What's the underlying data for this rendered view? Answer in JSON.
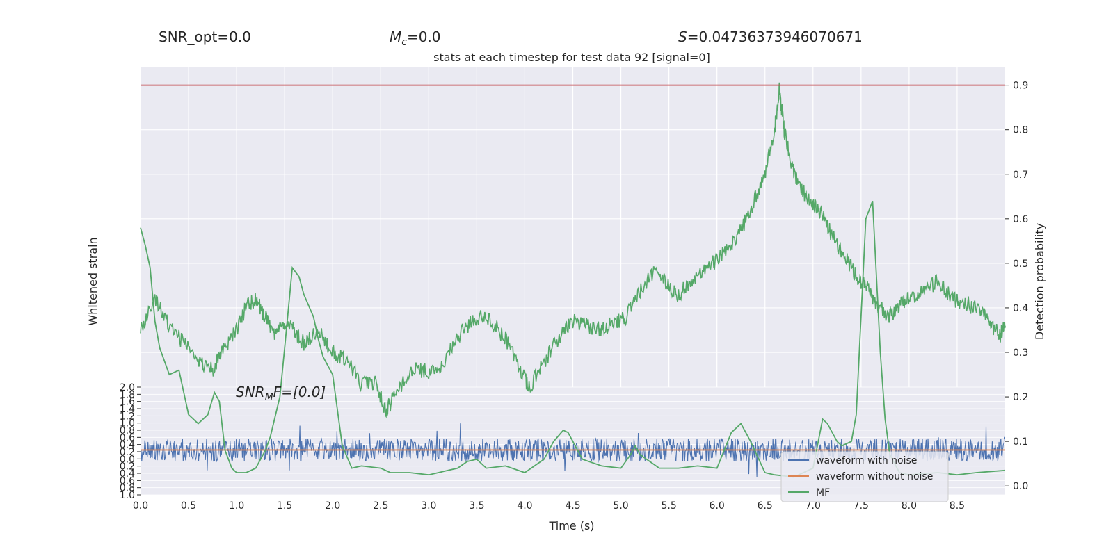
{
  "header": {
    "snr_opt": "SNR_opt=0.0",
    "mc_symbol": "M",
    "mc_sub": "c",
    "mc_value": "=0.0",
    "s_symbol": "S",
    "s_value": "=0.04736373946070671"
  },
  "annotation": {
    "snr_symbol": "SNR",
    "snr_sub": "M",
    "snr_rest": "F=[0.0]"
  },
  "colors": {
    "background": "#eaeaf2",
    "grid": "#ffffff",
    "noise": "#4c72b0",
    "clean": "#dd8452",
    "mf": "#55a868",
    "threshold": "#c44e52"
  },
  "chart_data": {
    "type": "line",
    "title": "stats at each timestep for test data 92 [signal=0]",
    "xlabel": "Time (s)",
    "ylabel_left": "Whitened strain",
    "ylabel_right": "Detection probability",
    "xlim": [
      0.0,
      9.0
    ],
    "x_ticks": [
      "0.0",
      "0.5",
      "1.0",
      "1.5",
      "2.0",
      "2.5",
      "3.0",
      "3.5",
      "4.0",
      "4.5",
      "5.0",
      "5.5",
      "6.0",
      "6.5",
      "7.0",
      "7.5",
      "8.0",
      "8.5"
    ],
    "y_right_lim": [
      -0.02,
      0.94
    ],
    "y_right_ticks": [
      "0.0",
      "0.1",
      "0.2",
      "0.3",
      "0.4",
      "0.5",
      "0.6",
      "0.7",
      "0.8",
      "0.9"
    ],
    "strain_lim": [
      -1.0,
      2.0
    ],
    "strain_tick_labels": [
      "2.0",
      "1.8",
      "1.6",
      "1.4",
      "1.2",
      "1.0",
      "0.8",
      "0.6",
      "0.4",
      "0.2",
      "0.0",
      "0.2",
      "0.4",
      "0.6",
      "0.8",
      "1.0"
    ],
    "threshold": 0.9,
    "legend": {
      "position": "lower-right",
      "entries": [
        "waveform with noise",
        "waveform without noise",
        "MF"
      ]
    },
    "series": [
      {
        "name": "waveform with noise",
        "axis": "strain",
        "style": "noise",
        "center": 0.25,
        "amplitude": 0.32,
        "peak": 0.75
      },
      {
        "name": "waveform without noise",
        "axis": "strain",
        "style": "flat",
        "value": 0.25
      },
      {
        "name": "MF",
        "axis": "probability",
        "x": [
          0.0,
          0.05,
          0.1,
          0.15,
          0.2,
          0.3,
          0.4,
          0.5,
          0.6,
          0.7,
          0.77,
          0.82,
          0.88,
          0.95,
          1.0,
          1.1,
          1.2,
          1.3,
          1.35,
          1.45,
          1.5,
          1.58,
          1.65,
          1.7,
          1.8,
          1.85,
          1.9,
          2.0,
          2.1,
          2.2,
          2.3,
          2.5,
          2.6,
          2.8,
          3.0,
          3.2,
          3.3,
          3.4,
          3.5,
          3.6,
          3.8,
          4.0,
          4.2,
          4.3,
          4.4,
          4.45,
          4.5,
          4.6,
          4.8,
          5.0,
          5.1,
          5.15,
          5.2,
          5.4,
          5.6,
          5.8,
          6.0,
          6.15,
          6.25,
          6.35,
          6.5,
          6.6,
          6.8,
          7.0,
          7.1,
          7.15,
          7.25,
          7.3,
          7.4,
          7.45,
          7.55,
          7.62,
          7.7,
          7.75,
          7.8,
          7.9,
          8.0,
          8.3,
          8.5,
          8.7,
          9.0
        ],
        "y": [
          0.58,
          0.54,
          0.49,
          0.37,
          0.31,
          0.25,
          0.26,
          0.16,
          0.14,
          0.16,
          0.21,
          0.19,
          0.08,
          0.04,
          0.03,
          0.03,
          0.04,
          0.08,
          0.11,
          0.2,
          0.31,
          0.49,
          0.47,
          0.43,
          0.38,
          0.33,
          0.29,
          0.25,
          0.09,
          0.04,
          0.045,
          0.04,
          0.03,
          0.03,
          0.025,
          0.035,
          0.04,
          0.055,
          0.06,
          0.04,
          0.045,
          0.03,
          0.06,
          0.1,
          0.125,
          0.12,
          0.1,
          0.06,
          0.045,
          0.04,
          0.07,
          0.09,
          0.07,
          0.04,
          0.04,
          0.045,
          0.04,
          0.12,
          0.14,
          0.1,
          0.03,
          0.025,
          0.02,
          0.04,
          0.15,
          0.14,
          0.1,
          0.09,
          0.1,
          0.16,
          0.6,
          0.64,
          0.3,
          0.15,
          0.07,
          0.03,
          0.025,
          0.03,
          0.025,
          0.03,
          0.035
        ]
      },
      {
        "name": "Detection probability",
        "axis": "probability",
        "style": "noisy",
        "x": [
          0.0,
          0.15,
          0.3,
          0.45,
          0.6,
          0.75,
          0.85,
          1.0,
          1.1,
          1.2,
          1.3,
          1.4,
          1.5,
          1.6,
          1.7,
          1.85,
          2.0,
          2.15,
          2.3,
          2.45,
          2.55,
          2.65,
          2.8,
          2.95,
          3.1,
          3.25,
          3.35,
          3.5,
          3.65,
          3.8,
          3.95,
          4.05,
          4.2,
          4.35,
          4.5,
          4.65,
          4.8,
          4.95,
          5.05,
          5.2,
          5.35,
          5.5,
          5.6,
          5.75,
          5.9,
          6.05,
          6.2,
          6.35,
          6.5,
          6.6,
          6.65,
          6.7,
          6.8,
          6.9,
          7.0,
          7.1,
          7.2,
          7.35,
          7.45,
          7.55,
          7.65,
          7.8,
          7.9,
          8.0,
          8.15,
          8.3,
          8.45,
          8.6,
          8.75,
          8.85,
          8.95,
          9.0
        ],
        "y": [
          0.35,
          0.42,
          0.36,
          0.32,
          0.28,
          0.26,
          0.3,
          0.35,
          0.4,
          0.42,
          0.38,
          0.34,
          0.36,
          0.35,
          0.32,
          0.35,
          0.3,
          0.28,
          0.23,
          0.23,
          0.17,
          0.2,
          0.26,
          0.26,
          0.25,
          0.32,
          0.35,
          0.38,
          0.37,
          0.33,
          0.26,
          0.22,
          0.28,
          0.33,
          0.37,
          0.36,
          0.35,
          0.37,
          0.38,
          0.44,
          0.48,
          0.45,
          0.43,
          0.46,
          0.49,
          0.52,
          0.55,
          0.62,
          0.7,
          0.8,
          0.89,
          0.8,
          0.7,
          0.66,
          0.63,
          0.61,
          0.56,
          0.51,
          0.47,
          0.45,
          0.41,
          0.38,
          0.41,
          0.42,
          0.44,
          0.46,
          0.42,
          0.41,
          0.39,
          0.36,
          0.34,
          0.36
        ]
      }
    ]
  }
}
